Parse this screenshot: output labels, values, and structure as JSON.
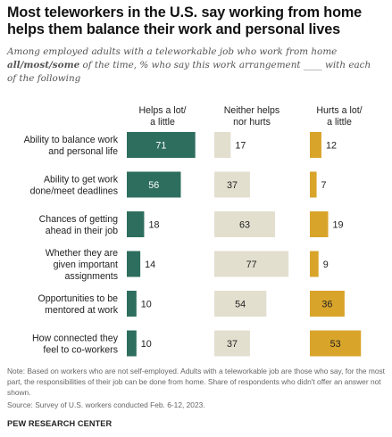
{
  "title": "Most teleworkers in the U.S. say working from home helps them balance their work and personal lives",
  "subtitle": {
    "part1": "Among employed adults with a teleworkable job who work from home ",
    "emphasis": "all/most/some",
    "part2": " of the time, % who say this work arrangement ____ with each of the following"
  },
  "chart_data": {
    "type": "bar",
    "categories": [
      "Ability to balance work and personal life",
      "Ability to get work done/meet deadlines",
      "Chances of getting ahead in their job",
      "Whether they are given important assignments",
      "Opportunities to be mentored at work",
      "How connected they feel to co-workers"
    ],
    "category_lines": [
      [
        "Ability to balance work",
        "and personal life"
      ],
      [
        "Ability to get work",
        "done/meet deadlines"
      ],
      [
        "Chances of getting",
        "ahead in their job"
      ],
      [
        "Whether they are",
        "given important",
        "assignments"
      ],
      [
        "Opportunities to be",
        "mentored at work"
      ],
      [
        "How connected they",
        "feel to co-workers"
      ]
    ],
    "series": [
      {
        "name": "Helps a lot/ a little",
        "name_lines": [
          "Helps a lot/",
          "a little"
        ],
        "color": "#2e6e5e",
        "values": [
          71,
          56,
          18,
          14,
          10,
          10
        ]
      },
      {
        "name": "Neither helps nor hurts",
        "name_lines": [
          "Neither helps",
          "nor hurts"
        ],
        "color": "#e3dfcf",
        "values": [
          17,
          37,
          63,
          77,
          54,
          37
        ]
      },
      {
        "name": "Hurts a lot/ a little",
        "name_lines": [
          "Hurts a lot/",
          "a little"
        ],
        "color": "#d9a42a",
        "values": [
          12,
          7,
          19,
          9,
          36,
          53
        ]
      }
    ]
  },
  "note": "Note: Based on workers who are not self-employed. Adults with a teleworkable job are those who say, for the most part, the responsibilities of their job can be done from home. Share of respondents who didn't offer an answer not shown.",
  "source": "Source: Survey of U.S. workers conducted Feb. 6-12, 2023.",
  "logo": "PEW RESEARCH CENTER"
}
